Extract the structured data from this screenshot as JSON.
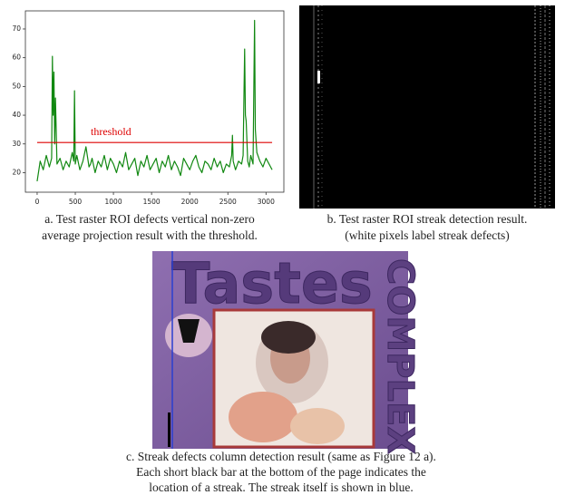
{
  "chart_data": {
    "type": "line",
    "x": [
      0,
      40,
      80,
      120,
      160,
      190,
      200,
      210,
      220,
      230,
      240,
      260,
      300,
      340,
      380,
      420,
      460,
      480,
      490,
      500,
      520,
      560,
      600,
      640,
      680,
      700,
      720,
      760,
      800,
      840,
      880,
      920,
      960,
      1000,
      1040,
      1080,
      1120,
      1160,
      1200,
      1240,
      1280,
      1320,
      1360,
      1400,
      1440,
      1480,
      1520,
      1560,
      1600,
      1640,
      1680,
      1720,
      1760,
      1800,
      1840,
      1880,
      1920,
      1960,
      2000,
      2040,
      2080,
      2120,
      2160,
      2200,
      2240,
      2280,
      2320,
      2360,
      2400,
      2440,
      2480,
      2520,
      2550,
      2560,
      2570,
      2600,
      2640,
      2680,
      2700,
      2710,
      2720,
      2730,
      2740,
      2760,
      2780,
      2800,
      2830,
      2850,
      2860,
      2880,
      2920,
      2960,
      3000,
      3040,
      3080
    ],
    "series": [
      {
        "color": "#118811",
        "values": [
          17,
          24,
          21,
          26,
          22,
          25,
          60.5,
          40,
          55,
          30,
          46,
          23,
          25,
          21,
          24,
          22,
          27,
          24,
          48.5,
          23,
          26,
          21,
          24,
          29,
          22,
          23,
          25,
          20,
          24,
          22,
          26,
          21,
          25,
          23,
          20,
          24,
          22,
          27,
          21,
          23,
          25,
          19,
          24,
          22,
          26,
          21,
          23,
          25,
          20,
          24,
          22,
          26,
          21,
          24,
          22,
          19,
          25,
          23,
          21,
          24,
          26,
          22,
          20,
          24,
          23,
          21,
          25,
          22,
          24,
          20,
          23,
          22,
          26,
          33,
          24,
          21,
          24,
          23,
          26,
          45,
          63,
          40,
          38,
          24,
          22,
          26,
          23,
          73,
          35,
          27,
          24,
          22,
          25,
          23,
          21
        ]
      }
    ],
    "xlim": [
      -154,
      3234
    ],
    "ylim": [
      13.2,
      76.3
    ],
    "xticks": [
      0,
      500,
      1000,
      1500,
      2000,
      2500,
      3000
    ],
    "yticks": [
      20,
      30,
      40,
      50,
      60,
      70
    ],
    "hlines": [
      {
        "value": 30.5,
        "color": "#dd0000",
        "label": "threshold"
      }
    ]
  },
  "image_text": {
    "title": "Tastes",
    "side": "COMPLEX"
  },
  "captions": {
    "a": [
      "a. Test raster ROI defects vertical non-zero",
      "average projection result with the threshold."
    ],
    "b": [
      "b. Test raster ROI streak detection result.",
      "(white pixels label streak defects)"
    ],
    "c": [
      "c. Streak defects column detection result (same as Figure 12 a).",
      "Each short black bar at the bottom of the page indicates the",
      "location of a streak. The streak itself is shown in blue."
    ]
  }
}
